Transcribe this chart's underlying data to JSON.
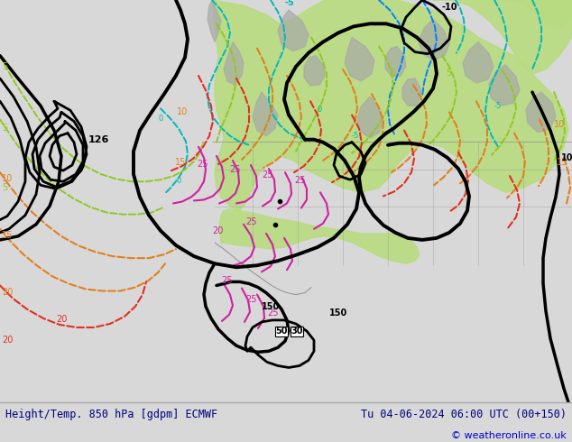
{
  "title_left": "Height/Temp. 850 hPa [gdpm] ECMWF",
  "title_right": "Tu 04-06-2024 06:00 UTC (00+150)",
  "copyright": "© weatheronline.co.uk",
  "title_color": "#000080",
  "copyright_color": "#0000cc",
  "bg_color": "#d8d8d8",
  "map_bg": "#e0e0e8",
  "land_green": "#b8dc80",
  "land_gray": "#a8a8a8",
  "figsize": [
    6.34,
    4.9
  ],
  "dpi": 100,
  "cyan": "#00b8b8",
  "blue": "#0080ff",
  "ygreen": "#90c820",
  "orange": "#e08020",
  "red": "#e03020",
  "magenta": "#d020a0"
}
